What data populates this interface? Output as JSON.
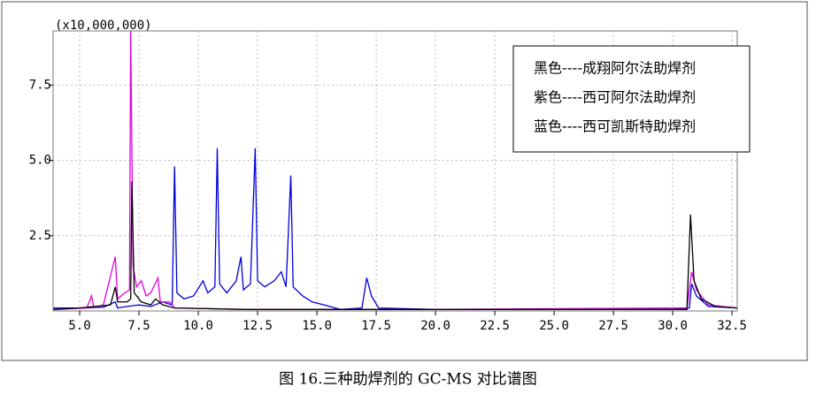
{
  "chart_data": {
    "type": "line",
    "multiplier_label": "(x10,000,000)",
    "caption": "图 16.三种助焊剂的 GC-MS 对比谱图",
    "xlim": [
      3.88,
      32.72
    ],
    "ylim": [
      0,
      9.3
    ],
    "xticks": [
      {
        "value": 5,
        "label": "5.0"
      },
      7.5,
      {
        "value": 10,
        "label": "10.0"
      },
      12.5,
      {
        "value": 15,
        "label": "15.0"
      },
      17.5,
      {
        "value": 20,
        "label": "20.0"
      },
      22.5,
      {
        "value": 25,
        "label": "25.0"
      },
      27.5,
      {
        "value": 30,
        "label": "30.0"
      },
      32.5
    ],
    "yticks": [
      2.5,
      {
        "value": 5,
        "label": "5.0"
      },
      7.5
    ],
    "grid": true,
    "legend": "top-right",
    "series": [
      {
        "name": "黑色----成翔阿尔法助焊剂",
        "color": "#000000",
        "x": [
          3.9,
          5.0,
          6.3,
          6.5,
          6.6,
          7.0,
          7.15,
          7.2,
          7.3,
          7.6,
          8.0,
          8.2,
          8.5,
          9.0,
          12,
          20,
          30.6,
          30.75,
          30.9,
          31.2,
          31.8,
          32.7
        ],
        "values": [
          0.05,
          0.1,
          0.2,
          0.8,
          0.3,
          0.3,
          0.4,
          4.3,
          0.6,
          0.3,
          0.2,
          0.4,
          0.2,
          0.1,
          0.05,
          0.05,
          0.05,
          3.2,
          1.0,
          0.4,
          0.15,
          0.1
        ]
      },
      {
        "name": "紫色----西可阿尔法助焊剂",
        "color": "#e000e0",
        "x": [
          3.9,
          5.3,
          5.5,
          5.6,
          6.0,
          6.5,
          6.6,
          6.9,
          7.1,
          7.15,
          7.25,
          7.4,
          7.6,
          7.8,
          8.0,
          8.3,
          8.4,
          8.8,
          9.0,
          12,
          20,
          30.6,
          30.8,
          31.0,
          31.5,
          32.7
        ],
        "values": [
          0.05,
          0.1,
          0.5,
          0.1,
          0.2,
          1.8,
          0.4,
          0.6,
          0.7,
          9.3,
          1.5,
          0.8,
          1.0,
          0.5,
          0.6,
          1.1,
          0.3,
          0.3,
          0.1,
          0.05,
          0.05,
          0.1,
          1.3,
          0.7,
          0.2,
          0.1
        ]
      },
      {
        "name": "蓝色----西可凯斯特助焊剂",
        "color": "#0000dd",
        "x": [
          3.9,
          5.0,
          6.0,
          6.5,
          6.6,
          7.0,
          7.5,
          8.0,
          8.5,
          8.9,
          9.0,
          9.1,
          9.4,
          9.8,
          10.2,
          10.4,
          10.7,
          10.8,
          10.9,
          11.2,
          11.6,
          11.8,
          11.9,
          12.2,
          12.4,
          12.5,
          12.8,
          13.2,
          13.5,
          13.7,
          13.9,
          14.0,
          14.4,
          14.8,
          15.3,
          16.0,
          16.9,
          17.1,
          17.3,
          17.6,
          20,
          25,
          30,
          30.7,
          30.8,
          31.0,
          31.5,
          32.7
        ],
        "values": [
          0.1,
          0.1,
          0.12,
          0.3,
          0.1,
          0.15,
          0.2,
          0.15,
          0.3,
          0.2,
          4.8,
          0.6,
          0.4,
          0.5,
          1.0,
          0.6,
          0.8,
          5.4,
          0.9,
          0.6,
          1.0,
          1.8,
          0.7,
          0.9,
          5.4,
          1.0,
          0.8,
          1.0,
          1.3,
          0.8,
          4.5,
          0.8,
          0.5,
          0.3,
          0.2,
          0.05,
          0.1,
          1.1,
          0.5,
          0.1,
          0.05,
          0.05,
          0.05,
          0.1,
          0.9,
          0.5,
          0.15,
          0.1
        ]
      }
    ]
  }
}
